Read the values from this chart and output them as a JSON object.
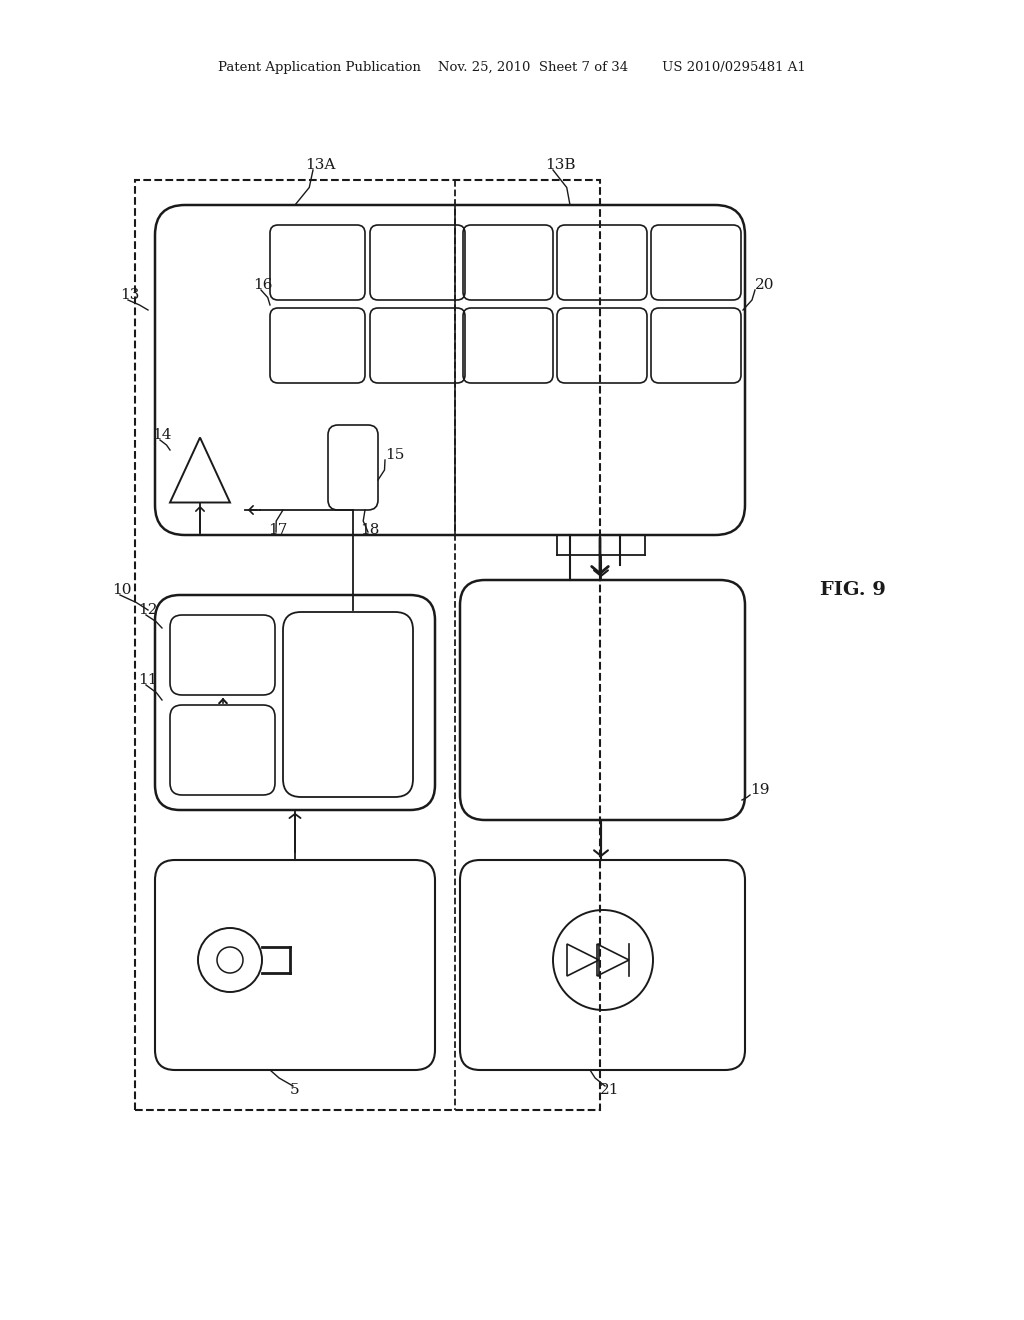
{
  "bg_color": "#ffffff",
  "line_color": "#1a1a1a",
  "header": "Patent Application Publication    Nov. 25, 2010  Sheet 7 of 34        US 2010/0295481 A1",
  "fig_label": "FIG. 9"
}
